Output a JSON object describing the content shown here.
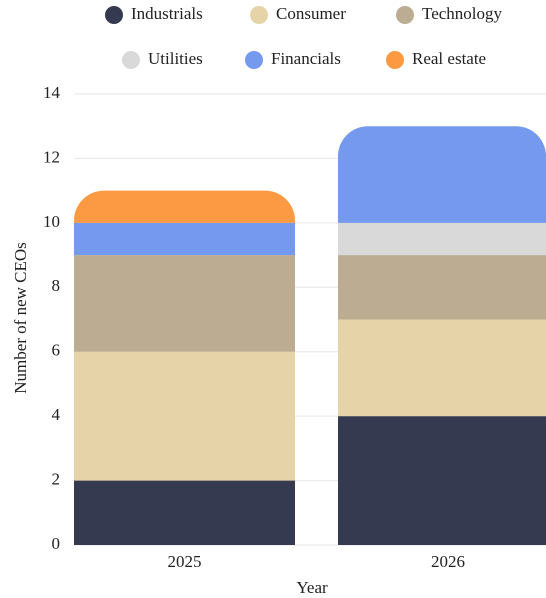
{
  "chart_data": {
    "type": "stacked_bar",
    "categories": [
      "2025",
      "2026"
    ],
    "series": [
      {
        "name": "Industrials",
        "color": "#363a50",
        "values": [
          2,
          4
        ]
      },
      {
        "name": "Consumer",
        "color": "#e6d4a8",
        "values": [
          4,
          3
        ]
      },
      {
        "name": "Technology",
        "color": "#bcad92",
        "values": [
          3,
          2
        ]
      },
      {
        "name": "Utilities",
        "color": "#d9d9d9",
        "values": [
          0,
          1
        ]
      },
      {
        "name": "Financials",
        "color": "#7599ee",
        "values": [
          1,
          3
        ]
      },
      {
        "name": "Real estate",
        "color": "#fb9a42",
        "values": [
          1,
          0
        ]
      }
    ],
    "x_label": "Year",
    "y_label": "Number of new CEOs",
    "ylim": [
      0,
      14
    ],
    "yticks": [
      0,
      2,
      4,
      6,
      8,
      10,
      12,
      14
    ],
    "grid": true
  }
}
